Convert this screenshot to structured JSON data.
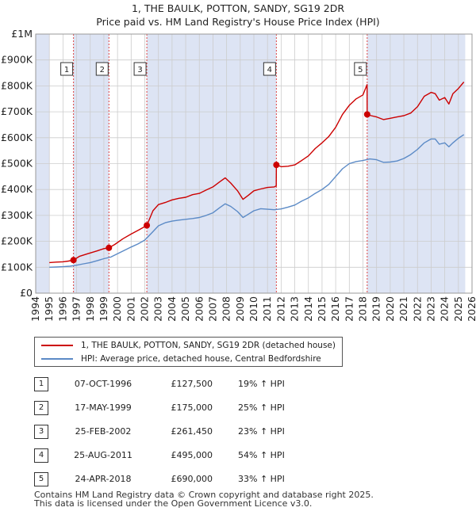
{
  "title_line1": "1, THE BAULK, POTTON, SANDY, SG19 2DR",
  "title_line2": "Price paid vs. HM Land Registry's House Price Index (HPI)",
  "colors": {
    "property": "#cc0000",
    "hpi": "#5b8ac6",
    "shade": "#dde4f4",
    "vline": "#dd4444",
    "grid": "#cccccc"
  },
  "legend": {
    "property_label": "1, THE BAULK, POTTON, SANDY, SG19 2DR (detached house)",
    "hpi_label": "HPI: Average price, detached house, Central Bedfordshire"
  },
  "sales": [
    {
      "num": "1",
      "date": "07-OCT-1996",
      "price": "£127,500",
      "pct": "19% ↑ HPI"
    },
    {
      "num": "2",
      "date": "17-MAY-1999",
      "price": "£175,000",
      "pct": "25% ↑ HPI"
    },
    {
      "num": "3",
      "date": "25-FEB-2002",
      "price": "£261,450",
      "pct": "23% ↑ HPI"
    },
    {
      "num": "4",
      "date": "25-AUG-2011",
      "price": "£495,000",
      "pct": "54% ↑ HPI"
    },
    {
      "num": "5",
      "date": "24-APR-2018",
      "price": "£690,000",
      "pct": "33% ↑ HPI"
    }
  ],
  "footer_line1": "Contains HM Land Registry data © Crown copyright and database right 2025.",
  "footer_line2": "This data is licensed under the Open Government Licence v3.0.",
  "chart_data": {
    "type": "line",
    "title": "1, THE BAULK, POTTON, SANDY, SG19 2DR — Price paid vs. HM Land Registry's House Price Index (HPI)",
    "xlim": [
      1994,
      2026
    ],
    "ylim": [
      0,
      1000000
    ],
    "x_ticks": [
      1994,
      1995,
      1996,
      1997,
      1998,
      1999,
      2000,
      2001,
      2002,
      2003,
      2004,
      2005,
      2006,
      2007,
      2008,
      2009,
      2010,
      2011,
      2012,
      2013,
      2014,
      2015,
      2016,
      2017,
      2018,
      2019,
      2020,
      2021,
      2022,
      2023,
      2024,
      2025,
      2026
    ],
    "y_ticks": [
      0,
      100000,
      200000,
      300000,
      400000,
      500000,
      600000,
      700000,
      800000,
      900000,
      1000000
    ],
    "y_tick_labels": [
      "£0",
      "£100K",
      "£200K",
      "£300K",
      "£400K",
      "£500K",
      "£600K",
      "£700K",
      "£800K",
      "£900K",
      "£1M"
    ],
    "shaded_ranges": [
      [
        1994.0,
        1995.0
      ],
      [
        1996.77,
        1999.37
      ],
      [
        2002.15,
        2011.65
      ],
      [
        2018.31,
        2025.5
      ]
    ],
    "sale_markers": [
      {
        "label": "1",
        "x": 1996.77,
        "y": 127500
      },
      {
        "label": "2",
        "x": 1999.37,
        "y": 175000
      },
      {
        "label": "3",
        "x": 2002.15,
        "y": 261450
      },
      {
        "label": "4",
        "x": 2011.65,
        "y": 495000
      },
      {
        "label": "5",
        "x": 2018.31,
        "y": 690000
      }
    ],
    "series": [
      {
        "name": "1, THE BAULK, POTTON, SANDY, SG19 2DR (detached house)",
        "color": "#cc0000",
        "x": [
          1995.0,
          1995.5,
          1996.0,
          1996.4,
          1996.77,
          1997.2,
          1997.8,
          1998.5,
          1999.0,
          1999.37,
          1999.8,
          2000.4,
          2001.0,
          2001.6,
          2002.15,
          2002.6,
          2003.0,
          2003.5,
          2004.0,
          2004.5,
          2005.0,
          2005.5,
          2006.0,
          2006.5,
          2007.0,
          2007.5,
          2007.9,
          2008.3,
          2008.8,
          2009.2,
          2009.6,
          2010.0,
          2010.5,
          2011.0,
          2011.5,
          2011.64,
          2011.65,
          2012.0,
          2012.5,
          2013.0,
          2013.5,
          2014.0,
          2014.5,
          2015.0,
          2015.5,
          2016.0,
          2016.5,
          2017.0,
          2017.5,
          2018.0,
          2018.3,
          2018.31,
          2018.6,
          2019.0,
          2019.5,
          2020.0,
          2020.5,
          2021.0,
          2021.5,
          2022.0,
          2022.5,
          2023.0,
          2023.3,
          2023.6,
          2024.0,
          2024.3,
          2024.6,
          2025.0,
          2025.4
        ],
        "y": [
          118000,
          120000,
          121000,
          124000,
          127500,
          142000,
          152000,
          163000,
          172000,
          175000,
          188000,
          210000,
          228000,
          245000,
          261450,
          318000,
          342000,
          350000,
          360000,
          366000,
          370000,
          380000,
          385000,
          398000,
          410000,
          430000,
          445000,
          425000,
          395000,
          362000,
          378000,
          395000,
          402000,
          408000,
          410000,
          414000,
          495000,
          488000,
          490000,
          495000,
          512000,
          530000,
          558000,
          580000,
          605000,
          640000,
          690000,
          725000,
          750000,
          765000,
          805000,
          690000,
          685000,
          680000,
          670000,
          675000,
          680000,
          685000,
          695000,
          720000,
          760000,
          775000,
          770000,
          745000,
          755000,
          730000,
          770000,
          790000,
          815000
        ]
      },
      {
        "name": "HPI: Average price, detached house, Central Bedfordshire",
        "color": "#5b8ac6",
        "x": [
          1995.0,
          1995.5,
          1996.0,
          1996.5,
          1997.0,
          1997.5,
          1998.0,
          1998.5,
          1999.0,
          1999.5,
          2000.0,
          2000.5,
          2001.0,
          2001.5,
          2002.0,
          2002.5,
          2003.0,
          2003.5,
          2004.0,
          2004.5,
          2005.0,
          2005.5,
          2006.0,
          2006.5,
          2007.0,
          2007.5,
          2007.9,
          2008.3,
          2008.8,
          2009.2,
          2009.6,
          2010.0,
          2010.5,
          2011.0,
          2011.5,
          2012.0,
          2012.5,
          2013.0,
          2013.5,
          2014.0,
          2014.5,
          2015.0,
          2015.5,
          2016.0,
          2016.5,
          2017.0,
          2017.5,
          2018.0,
          2018.5,
          2019.0,
          2019.5,
          2020.0,
          2020.5,
          2021.0,
          2021.5,
          2022.0,
          2022.5,
          2023.0,
          2023.3,
          2023.6,
          2024.0,
          2024.3,
          2024.6,
          2025.0,
          2025.4
        ],
        "y": [
          100000,
          101000,
          102000,
          104000,
          108000,
          113000,
          118000,
          125000,
          133000,
          139000,
          152000,
          165000,
          178000,
          190000,
          205000,
          232000,
          260000,
          272000,
          278000,
          282000,
          285000,
          288000,
          292000,
          300000,
          310000,
          330000,
          345000,
          335000,
          315000,
          292000,
          305000,
          318000,
          326000,
          324000,
          322000,
          325000,
          332000,
          340000,
          355000,
          368000,
          385000,
          400000,
          420000,
          450000,
          480000,
          500000,
          508000,
          512000,
          518000,
          515000,
          505000,
          506000,
          510000,
          520000,
          535000,
          555000,
          580000,
          595000,
          595000,
          575000,
          580000,
          565000,
          580000,
          598000,
          612000
        ]
      }
    ]
  }
}
